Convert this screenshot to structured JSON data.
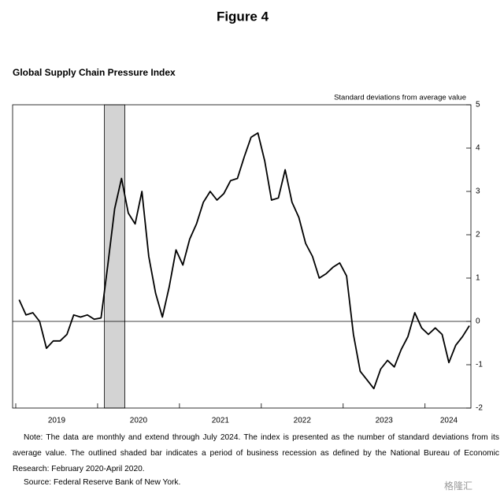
{
  "chart_data": {
    "type": "line",
    "figure_label": "Figure 4",
    "title": "Global Supply Chain Pressure Index",
    "y_axis_label": "Standard deviations from average value",
    "x": [
      "2019-01",
      "2019-02",
      "2019-03",
      "2019-04",
      "2019-05",
      "2019-06",
      "2019-07",
      "2019-08",
      "2019-09",
      "2019-10",
      "2019-11",
      "2019-12",
      "2020-01",
      "2020-02",
      "2020-03",
      "2020-04",
      "2020-05",
      "2020-06",
      "2020-07",
      "2020-08",
      "2020-09",
      "2020-10",
      "2020-11",
      "2020-12",
      "2021-01",
      "2021-02",
      "2021-03",
      "2021-04",
      "2021-05",
      "2021-06",
      "2021-07",
      "2021-08",
      "2021-09",
      "2021-10",
      "2021-11",
      "2021-12",
      "2022-01",
      "2022-02",
      "2022-03",
      "2022-04",
      "2022-05",
      "2022-06",
      "2022-07",
      "2022-08",
      "2022-09",
      "2022-10",
      "2022-11",
      "2022-12",
      "2023-01",
      "2023-02",
      "2023-03",
      "2023-04",
      "2023-05",
      "2023-06",
      "2023-07",
      "2023-08",
      "2023-09",
      "2023-10",
      "2023-11",
      "2023-12",
      "2024-01",
      "2024-02",
      "2024-03",
      "2024-04",
      "2024-05",
      "2024-06",
      "2024-07"
    ],
    "x_labels": [
      "2019",
      "2020",
      "2021",
      "2022",
      "2023",
      "2024"
    ],
    "series": [
      {
        "name": "Global Supply Chain Pressure Index",
        "color": "#000000",
        "values": [
          0.5,
          0.15,
          0.2,
          0.0,
          -0.62,
          -0.45,
          -0.45,
          -0.3,
          0.15,
          0.1,
          0.15,
          0.05,
          0.08,
          1.3,
          2.6,
          3.3,
          2.5,
          2.25,
          3.0,
          1.5,
          0.65,
          0.1,
          0.8,
          1.65,
          1.3,
          1.9,
          2.25,
          2.75,
          3.0,
          2.8,
          2.95,
          3.25,
          3.3,
          3.8,
          4.25,
          4.35,
          3.7,
          2.8,
          2.85,
          3.5,
          2.75,
          2.4,
          1.8,
          1.5,
          1.0,
          1.1,
          1.25,
          1.35,
          1.05,
          -0.3,
          -1.15,
          -1.35,
          -1.55,
          -1.1,
          -0.9,
          -1.05,
          -0.65,
          -0.35,
          0.2,
          -0.15,
          -0.3,
          -0.15,
          -0.3,
          -0.95,
          -0.55,
          -0.35,
          -0.1
        ]
      }
    ],
    "recession": {
      "start": "2020-02",
      "end": "2020-04",
      "color": "#d3d3d3"
    },
    "ylim": [
      -2,
      5
    ],
    "yticks": [
      -2,
      -1,
      0,
      1,
      2,
      3,
      4,
      5
    ],
    "zero_line": true
  },
  "notes": {
    "note": "Note: The data are monthly and extend through July 2024. The index is presented as the number of standard deviations from its average value. The outlined shaded bar indicates a period of business recession as defined by the National Bureau of Economic Research: February 2020-April 2020.",
    "source": "Source: Federal Reserve Bank of New York.",
    "watermark": "格隆汇"
  }
}
